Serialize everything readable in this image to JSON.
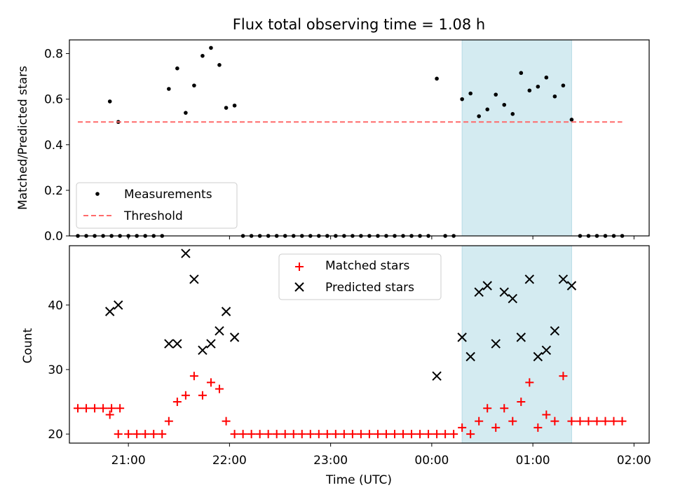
{
  "chart_data": [
    {
      "type": "scatter",
      "title": "Flux total observing time = 1.08 h",
      "xlabel": "",
      "ylabel": "Matched/Predicted stars",
      "xlim": [
        "20:25",
        "02:09"
      ],
      "ylim": [
        0,
        0.86
      ],
      "yticks": [
        0.0,
        0.2,
        0.4,
        0.6,
        0.8
      ],
      "ytick_labels": [
        "0.0",
        "0.2",
        "0.4",
        "0.6",
        "0.8"
      ],
      "xticks": [
        "21:00",
        "22:00",
        "23:00",
        "00:00",
        "01:00",
        "02:00"
      ],
      "legend": {
        "placement": "lower-left",
        "entries": [
          "Measurements",
          "Threshold"
        ]
      },
      "shaded_region": {
        "x_start": "00:18",
        "x_end": "01:23",
        "color": "#d4ebf1"
      },
      "series": [
        {
          "name": "Measurements",
          "marker": "dot",
          "color": "#000000",
          "x": [
            "20:30",
            "20:35",
            "20:40",
            "20:45",
            "20:50",
            "20:55",
            "20:49",
            "20:54",
            "21:00",
            "21:05",
            "21:10",
            "21:15",
            "21:20",
            "21:24",
            "21:29",
            "21:34",
            "21:39",
            "21:44",
            "21:49",
            "21:54",
            "21:58",
            "22:03",
            "22:08",
            "22:13",
            "22:18",
            "22:23",
            "22:28",
            "22:33",
            "22:38",
            "22:43",
            "22:48",
            "22:53",
            "22:58",
            "23:03",
            "23:08",
            "23:13",
            "23:18",
            "23:23",
            "23:28",
            "23:33",
            "23:38",
            "23:43",
            "23:48",
            "23:53",
            "23:58",
            "00:03",
            "00:08",
            "00:13",
            "00:18",
            "00:23",
            "00:28",
            "00:33",
            "00:38",
            "00:43",
            "00:48",
            "00:53",
            "00:58",
            "01:03",
            "01:08",
            "01:13",
            "01:18",
            "01:23",
            "01:28",
            "01:33",
            "01:38",
            "01:43",
            "01:48",
            "01:53"
          ],
          "y": [
            0,
            0,
            0,
            0,
            0,
            0,
            0.59,
            0.5,
            0,
            0,
            0,
            0,
            0,
            0.645,
            0.735,
            0.54,
            0.66,
            0.79,
            0.825,
            0.75,
            0.562,
            0.572,
            0,
            0,
            0,
            0,
            0,
            0,
            0,
            0,
            0,
            0,
            0,
            0,
            0,
            0,
            0,
            0,
            0,
            0,
            0,
            0,
            0,
            0,
            0,
            0.69,
            0,
            0,
            0.6,
            0.625,
            0.525,
            0.555,
            0.62,
            0.575,
            0.535,
            0.715,
            0.638,
            0.655,
            0.695,
            0.612,
            0.66,
            0.51,
            0,
            0,
            0,
            0,
            0,
            0
          ]
        },
        {
          "name": "Threshold",
          "type": "line",
          "style": "dashed",
          "color": "#ff6b6b",
          "x": [
            "20:30",
            "01:53"
          ],
          "y": [
            0.5,
            0.5
          ]
        }
      ]
    },
    {
      "type": "scatter",
      "title": "",
      "xlabel": "Time (UTC)",
      "ylabel": "Count",
      "xlim": [
        "20:25",
        "02:09"
      ],
      "ylim": [
        18.6,
        49.2
      ],
      "yticks": [
        20,
        30,
        40
      ],
      "ytick_labels": [
        "20",
        "30",
        "40"
      ],
      "xticks": [
        "21:00",
        "22:00",
        "23:00",
        "00:00",
        "01:00",
        "02:00"
      ],
      "xtick_labels": [
        "21:00",
        "22:00",
        "23:00",
        "00:00",
        "01:00",
        "02:00"
      ],
      "legend": {
        "placement": "upper-center",
        "entries": [
          "Matched stars",
          "Predicted stars"
        ]
      },
      "shaded_region": {
        "x_start": "00:18",
        "x_end": "01:23",
        "color": "#d4ebf1"
      },
      "series": [
        {
          "name": "Matched stars",
          "marker": "plus",
          "color": "#ff0000",
          "x": [
            "20:30",
            "20:35",
            "20:40",
            "20:45",
            "20:50",
            "20:55",
            "20:49",
            "20:54",
            "21:00",
            "21:05",
            "21:10",
            "21:15",
            "21:20",
            "21:24",
            "21:29",
            "21:34",
            "21:39",
            "21:44",
            "21:49",
            "21:54",
            "21:58",
            "22:03",
            "22:08",
            "22:13",
            "22:18",
            "22:23",
            "22:28",
            "22:33",
            "22:38",
            "22:43",
            "22:48",
            "22:53",
            "22:58",
            "23:03",
            "23:08",
            "23:13",
            "23:18",
            "23:23",
            "23:28",
            "23:33",
            "23:38",
            "23:43",
            "23:48",
            "23:53",
            "23:58",
            "00:03",
            "00:08",
            "00:13",
            "00:18",
            "00:23",
            "00:28",
            "00:33",
            "00:38",
            "00:43",
            "00:48",
            "00:53",
            "00:58",
            "01:03",
            "01:08",
            "01:13",
            "01:18",
            "01:23",
            "01:28",
            "01:33",
            "01:38",
            "01:43",
            "01:48",
            "01:53"
          ],
          "y": [
            24,
            24,
            24,
            24,
            24,
            24,
            23,
            20,
            20,
            20,
            20,
            20,
            20,
            22,
            25,
            26,
            29,
            26,
            28,
            27,
            22,
            20,
            20,
            20,
            20,
            20,
            20,
            20,
            20,
            20,
            20,
            20,
            20,
            20,
            20,
            20,
            20,
            20,
            20,
            20,
            20,
            20,
            20,
            20,
            20,
            20,
            20,
            20,
            21,
            20,
            22,
            24,
            21,
            24,
            22,
            25,
            28,
            21,
            23,
            22,
            29,
            22,
            22,
            22,
            22,
            22,
            22,
            22
          ]
        },
        {
          "name": "Predicted stars",
          "marker": "x",
          "color": "#000000",
          "x": [
            "20:49",
            "20:54",
            "21:24",
            "21:29",
            "21:34",
            "21:39",
            "21:44",
            "21:49",
            "21:54",
            "21:58",
            "22:03",
            "00:03",
            "00:18",
            "00:23",
            "00:28",
            "00:33",
            "00:38",
            "00:43",
            "00:48",
            "00:53",
            "00:58",
            "01:03",
            "01:08",
            "01:13",
            "01:18",
            "01:23"
          ],
          "y": [
            39,
            40,
            34,
            34,
            48,
            44,
            33,
            34,
            36,
            39,
            35,
            29,
            35,
            32,
            42,
            43,
            34,
            42,
            41,
            35,
            44,
            32,
            33,
            36,
            44,
            43
          ]
        }
      ]
    }
  ]
}
